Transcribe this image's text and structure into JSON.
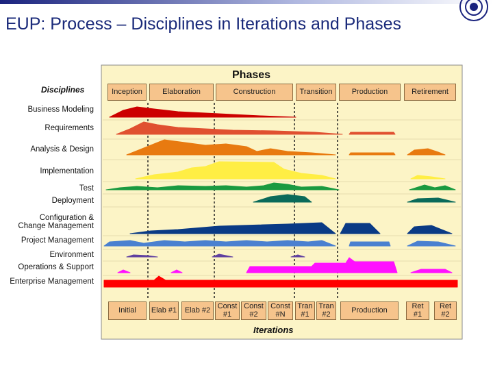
{
  "header": {
    "title": "EUP: Process – Disciplines in Iterations and Phases"
  },
  "diagram": {
    "phases_label": "Phases",
    "disciplines_label": "Disciplines",
    "iterations_label": "Iterations",
    "phases": [
      "Inception",
      "Elaboration",
      "Construction",
      "Transition",
      "Production",
      "Retirement"
    ],
    "disciplines": [
      "Business Modeling",
      "Requirements",
      "Analysis & Design",
      "Implementation",
      "Test",
      "Deployment",
      "Configuration &\nChange Management",
      "Project Management",
      "Environment",
      "Operations & Support",
      "Enterprise Management"
    ],
    "iterations": [
      "Initial",
      "Elab #1",
      "Elab #2",
      "Const\n#1",
      "Const\n#2",
      "Const\n#N",
      "Tran\n#1",
      "Tran\n#2",
      "Production",
      "Ret\n#1",
      "Ret\n#2"
    ]
  }
}
